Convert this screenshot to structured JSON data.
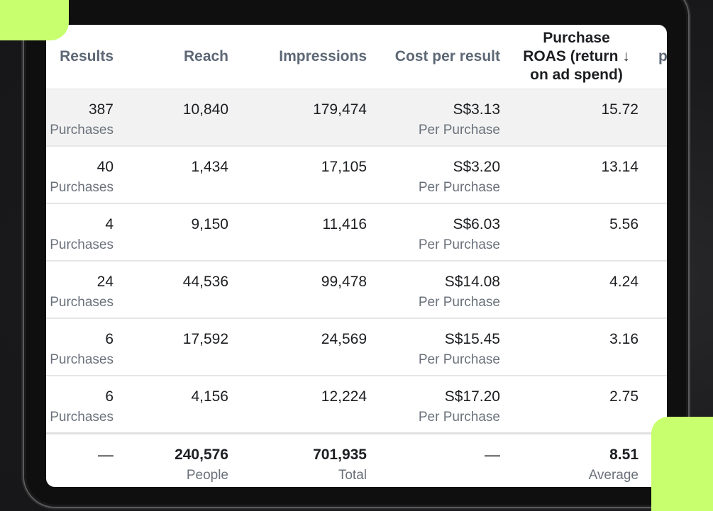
{
  "columns": {
    "results": "Results",
    "reach": "Reach",
    "impressions": "Impressions",
    "cost_per_result": "Cost per result",
    "roas_line1": "Purchase",
    "roas_line2": "ROAS (return ↓",
    "roas_line3": "on ad spend)",
    "cut_off": "p"
  },
  "rows": [
    {
      "results": "387",
      "results_unit": "Purchases",
      "reach": "10,840",
      "impressions": "179,474",
      "cost": "S$3.13",
      "cost_unit": "Per Purchase",
      "roas": "15.72"
    },
    {
      "results": "40",
      "results_unit": "Purchases",
      "reach": "1,434",
      "impressions": "17,105",
      "cost": "S$3.20",
      "cost_unit": "Per Purchase",
      "roas": "13.14"
    },
    {
      "results": "4",
      "results_unit": "Purchases",
      "reach": "9,150",
      "impressions": "11,416",
      "cost": "S$6.03",
      "cost_unit": "Per Purchase",
      "roas": "5.56"
    },
    {
      "results": "24",
      "results_unit": "Purchases",
      "reach": "44,536",
      "impressions": "99,478",
      "cost": "S$14.08",
      "cost_unit": "Per Purchase",
      "roas": "4.24"
    },
    {
      "results": "6",
      "results_unit": "Purchases",
      "reach": "17,592",
      "impressions": "24,569",
      "cost": "S$15.45",
      "cost_unit": "Per Purchase",
      "roas": "3.16"
    },
    {
      "results": "6",
      "results_unit": "Purchases",
      "reach": "4,156",
      "impressions": "12,224",
      "cost": "S$17.20",
      "cost_unit": "Per Purchase",
      "roas": "2.75"
    }
  ],
  "totals": {
    "results": "—",
    "reach": "240,576",
    "reach_unit": "People",
    "impressions": "701,935",
    "impressions_unit": "Total",
    "cost": "—",
    "roas": "8.51",
    "roas_unit": "Average"
  },
  "colors": {
    "accent": "#c8ff6e",
    "background": "#1c1c1e",
    "highlight_row": "#f2f2f2"
  }
}
